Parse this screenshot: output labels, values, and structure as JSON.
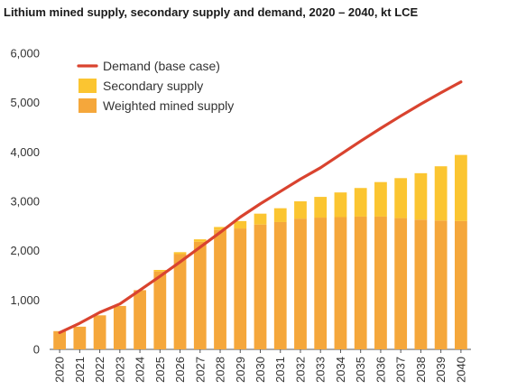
{
  "chart_data": {
    "type": "bar",
    "title": "Lithium mined supply, secondary supply and demand, 2020 – 2040, kt LCE",
    "xlabel": "",
    "ylabel": "",
    "ylim": [
      0,
      6000
    ],
    "yticks": [
      0,
      1000,
      2000,
      3000,
      4000,
      5000,
      6000
    ],
    "ytick_labels": [
      "0",
      "1,000",
      "2,000",
      "3,000",
      "4,000",
      "5,000",
      "6,000"
    ],
    "categories": [
      "2020",
      "2021",
      "2022",
      "2023",
      "2024",
      "2025",
      "2026",
      "2027",
      "2028",
      "2029",
      "2030",
      "2031",
      "2032",
      "2033",
      "2034",
      "2035",
      "2036",
      "2037",
      "2038",
      "2039",
      "2040"
    ],
    "stacked": true,
    "legend_position": "top-left",
    "grid": false,
    "series": [
      {
        "name": "Weighted mined supply",
        "type": "bar",
        "color": "#f5a73b",
        "values": [
          370,
          460,
          690,
          880,
          1200,
          1580,
          1930,
          2180,
          2420,
          2450,
          2530,
          2580,
          2650,
          2670,
          2680,
          2690,
          2690,
          2660,
          2630,
          2610,
          2600
        ]
      },
      {
        "name": "Secondary supply",
        "type": "bar",
        "color": "#fbc531",
        "values": [
          0,
          0,
          0,
          0,
          0,
          30,
          40,
          50,
          60,
          150,
          220,
          280,
          350,
          420,
          500,
          580,
          700,
          810,
          940,
          1100,
          1340
        ]
      },
      {
        "name": "Demand (base case)",
        "type": "line",
        "color": "#d9432f",
        "values": [
          340,
          530,
          750,
          920,
          1200,
          1480,
          1770,
          2070,
          2370,
          2680,
          2950,
          3200,
          3450,
          3680,
          3950,
          4220,
          4480,
          4730,
          4970,
          5200,
          5420
        ]
      }
    ]
  }
}
